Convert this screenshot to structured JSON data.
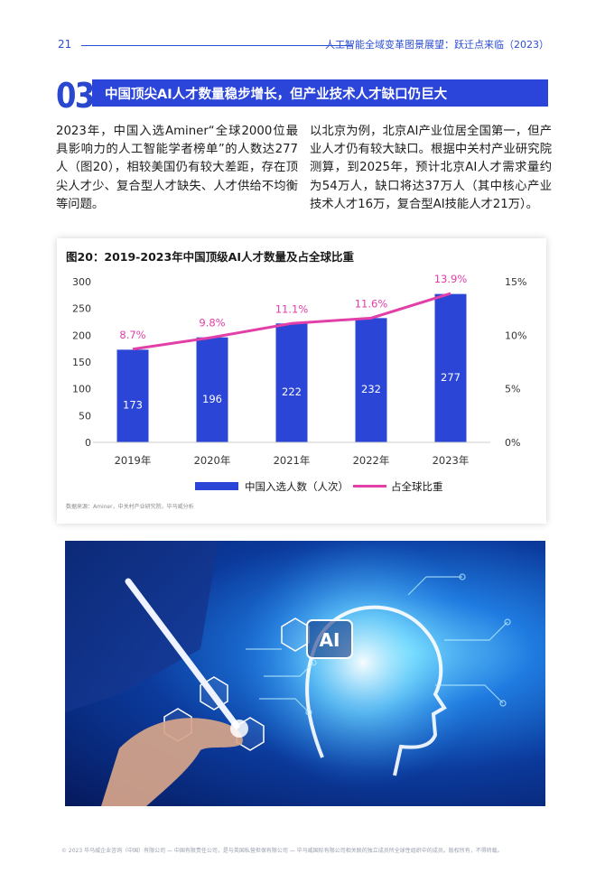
{
  "header": {
    "page_number": "21",
    "doc_title": "人工智能全域变革图景展望：跃迁点来临（2023）"
  },
  "section": {
    "number": "03",
    "title": "中国顶尖AI人才数量稳步增长，但产业技术人才缺口仍巨大"
  },
  "body": {
    "left_paragraph": "2023年，中国入选Aminer“全球2000位最具影响力的人工智能学者榜单”的人数达277人（图20），相较美国仍有较大差距，存在顶尖人才少、复合型人才缺失、人才供给不均衡等问题。",
    "right_paragraph": "以北京为例，北京AI产业位居全国第一，但产业人才仍有较大缺口。根据中关村产业研究院测算，到2025年，预计北京AI人才需求量约为54万人，缺口将达37万人（其中核心产业技术人才16万，复合型AI技能人才21万）。"
  },
  "chart_data": {
    "type": "bar",
    "title": "图20：2019-2023年中国顶级AI人才数量及占全球比重",
    "categories": [
      "2019年",
      "2020年",
      "2021年",
      "2022年",
      "2023年"
    ],
    "series": [
      {
        "name": "中国入选人数（人次）",
        "type": "bar",
        "axis": "left",
        "values": [
          173,
          196,
          222,
          232,
          277
        ],
        "labels": [
          "173",
          "196",
          "222",
          "232",
          "277"
        ]
      },
      {
        "name": "占全球比重",
        "type": "line",
        "axis": "right",
        "values": [
          8.7,
          9.8,
          11.1,
          11.6,
          13.9
        ],
        "labels": [
          "8.7%",
          "9.8%",
          "11.1%",
          "11.6%",
          "13.9%"
        ]
      }
    ],
    "left_axis": {
      "ylim": [
        0,
        300
      ],
      "ticks": [
        "0",
        "50",
        "100",
        "150",
        "200",
        "250",
        "300"
      ],
      "tick_values": [
        0,
        50,
        100,
        150,
        200,
        250,
        300
      ]
    },
    "right_axis": {
      "ylim": [
        0,
        15
      ],
      "ticks": [
        "0%",
        "5%",
        "10%",
        "15%"
      ],
      "tick_values": [
        0,
        5,
        10,
        15
      ]
    },
    "legend_position": "bottom",
    "grid": false,
    "source": "数据来源：Aminer，中关村产业研究院，毕马威分析",
    "colors": {
      "bar": "#2b45d6",
      "line": "#e23fa8",
      "line_label": "#e23fa8",
      "bar_label": "#ffffff"
    }
  },
  "image": {
    "badge_text": "AI"
  },
  "footer": {
    "text": "© 2023 毕马威企业咨询（中国）有限公司 — 中国有限责任公司，是与英国私营担保有限公司 — 毕马威国际有限公司相关联的独立成员所全球性组织中的成员。版权所有，不得转载。"
  }
}
